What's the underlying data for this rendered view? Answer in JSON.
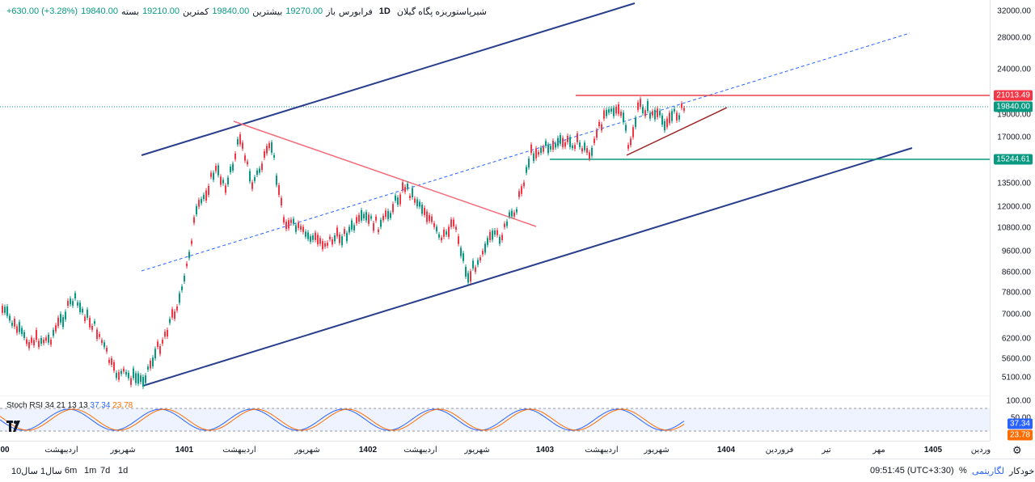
{
  "legend": {
    "symbol": "شیرپاستوریزه پگاه گیلان",
    "interval": "1D",
    "exchange": "فرابورس",
    "open_label": "باز",
    "open_value": "19270.00",
    "high_label": "بیشترین",
    "high_value": "19840.00",
    "low_label": "کمترین",
    "low_value": "19210.00",
    "close_label": "بسته",
    "close_value": "19840.00",
    "change_value": "+630.00 (+3.28%)"
  },
  "price_axis": {
    "ticks": [
      "32000.00",
      "28000.00",
      "24000.00",
      "19000.00",
      "17000.00",
      "13500.00",
      "12000.00",
      "10800.00",
      "9600.00",
      "8600.00",
      "7800.00",
      "7000.00",
      "6200.00",
      "5600.00",
      "5100.00"
    ],
    "badges": [
      {
        "value": "21013.49",
        "color": "#f23645"
      },
      {
        "value": "19840.00",
        "color": "#089981"
      },
      {
        "value": "15244.61",
        "color": "#089981"
      }
    ]
  },
  "stoch": {
    "label": "Stoch RSI 34 21 13 13",
    "k_value": "37.34",
    "d_value": "23.78",
    "k_color": "#2962ff",
    "d_color": "#ff6d00",
    "ticks": [
      "100.00",
      "50.00"
    ]
  },
  "time_axis": {
    "ticks": [
      {
        "label": "00",
        "bold": true
      },
      {
        "label": "اردیبهشت",
        "bold": false
      },
      {
        "label": "شهریور",
        "bold": false
      },
      {
        "label": "1401",
        "bold": true
      },
      {
        "label": "اردیبهشت",
        "bold": false
      },
      {
        "label": "شهریور",
        "bold": false
      },
      {
        "label": "1402",
        "bold": true
      },
      {
        "label": "اردیبهشت",
        "bold": false
      },
      {
        "label": "شهریور",
        "bold": false
      },
      {
        "label": "1403",
        "bold": true
      },
      {
        "label": "اردیبهشت",
        "bold": false
      },
      {
        "label": "شهریور",
        "bold": false
      },
      {
        "label": "1404",
        "bold": true
      },
      {
        "label": "فروردین",
        "bold": false
      },
      {
        "label": "تیر",
        "bold": false
      },
      {
        "label": "مهر",
        "bold": false
      },
      {
        "label": "1405",
        "bold": true
      },
      {
        "label": "وردین",
        "bold": false
      }
    ]
  },
  "ranges": [
    "10سال",
    "1سال",
    "6m",
    "1m",
    "7d",
    "1d"
  ],
  "bottom": {
    "clock": "09:51:45 (UTC+3:30)",
    "percent": "%",
    "log": "لگاریتمی",
    "auto": "خودکار"
  },
  "colors": {
    "up": "#089981",
    "down": "#f23645",
    "channel": "#283e8c",
    "midline": "#2962ff"
  }
}
